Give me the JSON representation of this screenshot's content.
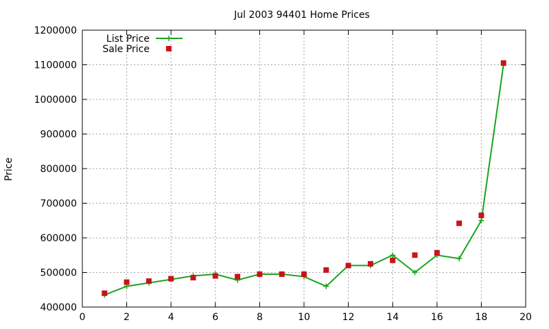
{
  "chart_data": {
    "type": "line",
    "title": "Jul 2003 94401 Home Prices",
    "xlabel": "",
    "ylabel": "Price",
    "xlim": [
      0,
      20
    ],
    "ylim": [
      400000,
      1200000
    ],
    "xticks": [
      0,
      2,
      4,
      6,
      8,
      10,
      12,
      14,
      16,
      18,
      20
    ],
    "yticks": [
      400000,
      500000,
      600000,
      700000,
      800000,
      900000,
      1000000,
      1100000,
      1200000
    ],
    "grid": true,
    "legend_position": "top-left",
    "series": [
      {
        "name": "List Price",
        "style": "line-plus",
        "color": "#1aa31a",
        "x": [
          1,
          2,
          3,
          4,
          5,
          6,
          7,
          8,
          9,
          10,
          11,
          12,
          13,
          14,
          15,
          16,
          17,
          18,
          19
        ],
        "y": [
          435000,
          460000,
          470000,
          480000,
          490000,
          495000,
          478000,
          495000,
          495000,
          488000,
          460000,
          520000,
          520000,
          550000,
          500000,
          550000,
          540000,
          650000,
          1100000
        ]
      },
      {
        "name": "Sale Price",
        "style": "square-points",
        "color": "#c8141a",
        "x": [
          1,
          2,
          3,
          4,
          5,
          6,
          7,
          8,
          9,
          10,
          11,
          12,
          13,
          14,
          15,
          16,
          17,
          18,
          19
        ],
        "y": [
          440000,
          472000,
          475000,
          482000,
          485000,
          490000,
          488000,
          495000,
          495000,
          495000,
          507000,
          520000,
          525000,
          535000,
          550000,
          557000,
          642000,
          665000,
          1105000
        ]
      }
    ]
  }
}
